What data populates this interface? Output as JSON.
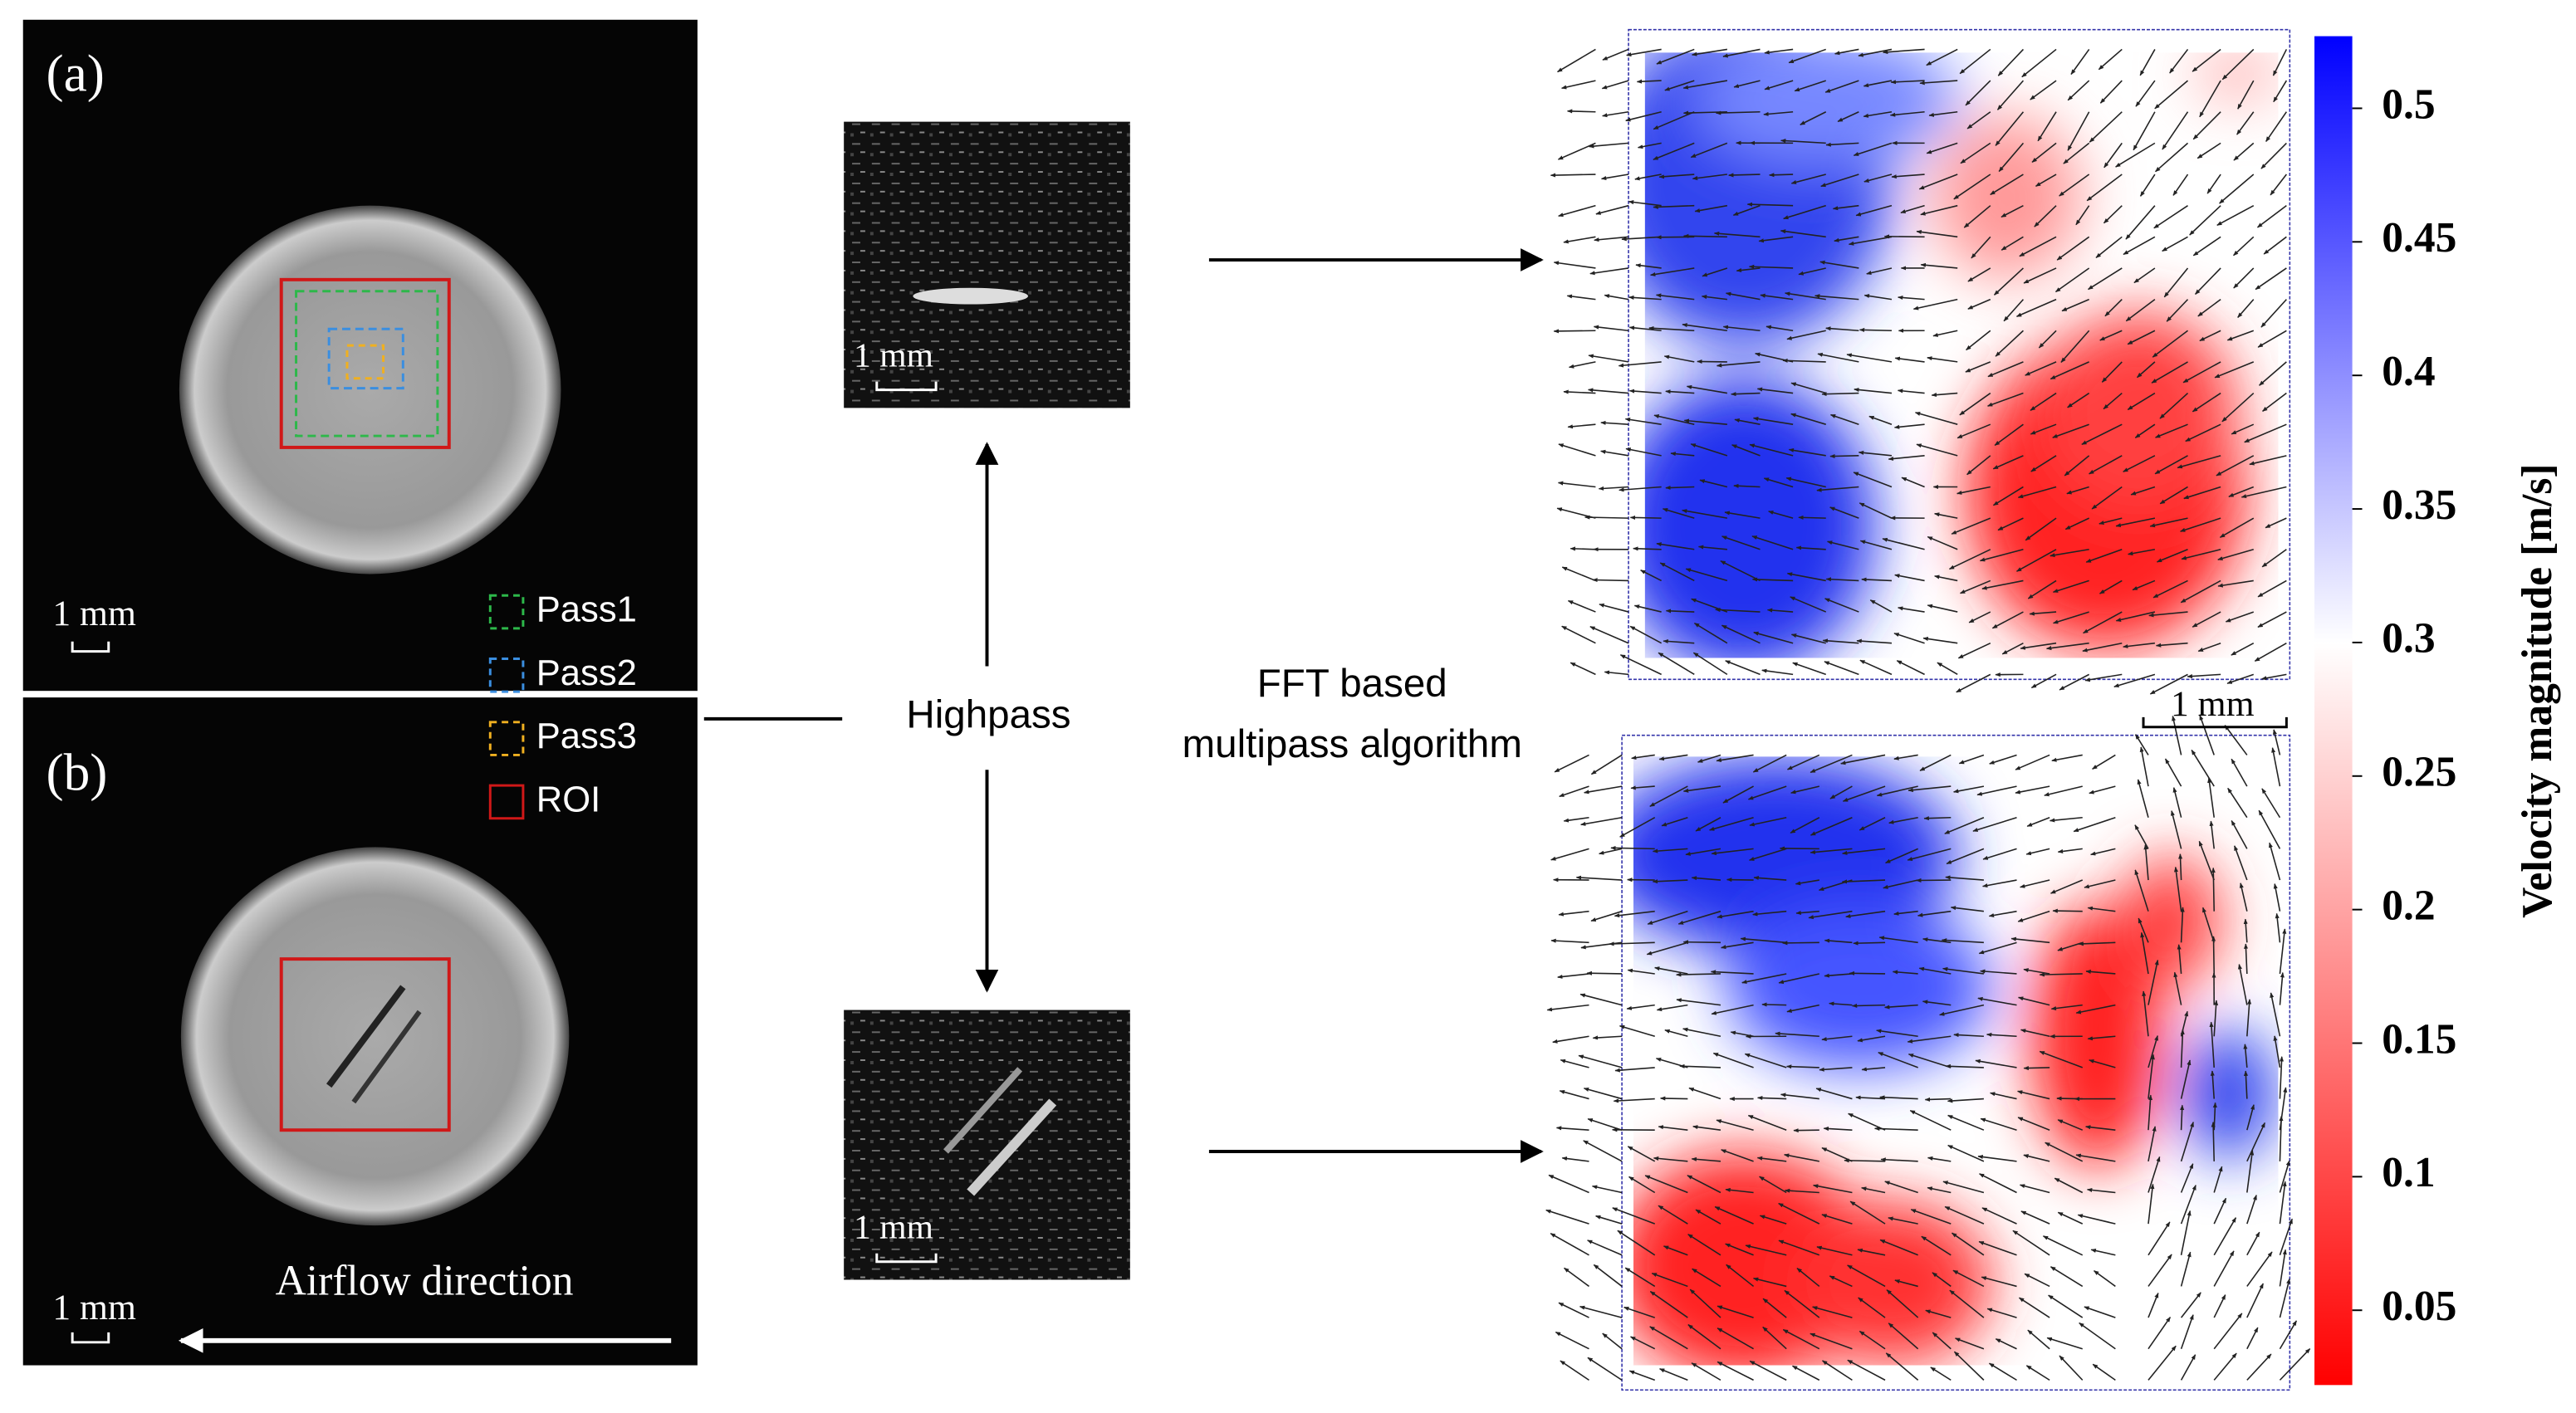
{
  "panel_a": {
    "label": "(a)",
    "scale": "1 mm"
  },
  "panel_b": {
    "label": "(b)",
    "scale": "1 mm",
    "flow": "Airflow direction"
  },
  "legend": [
    "Pass1",
    "Pass2",
    "Pass3",
    "ROI"
  ],
  "highpass": {
    "label": "Highpass",
    "scale_top": "1 mm",
    "scale_bottom": "1 mm"
  },
  "algorithm": [
    "FFT based",
    "multipass algorithm"
  ],
  "vector_field": {
    "scale": "1 mm"
  },
  "colorbar": {
    "label": "Velocity magnitude [m/s]",
    "range": [
      0.022,
      0.527
    ],
    "ticks": [
      0.5,
      0.45,
      0.4,
      0.35,
      0.3,
      0.25,
      0.2,
      0.15,
      0.1,
      0.05
    ]
  }
}
